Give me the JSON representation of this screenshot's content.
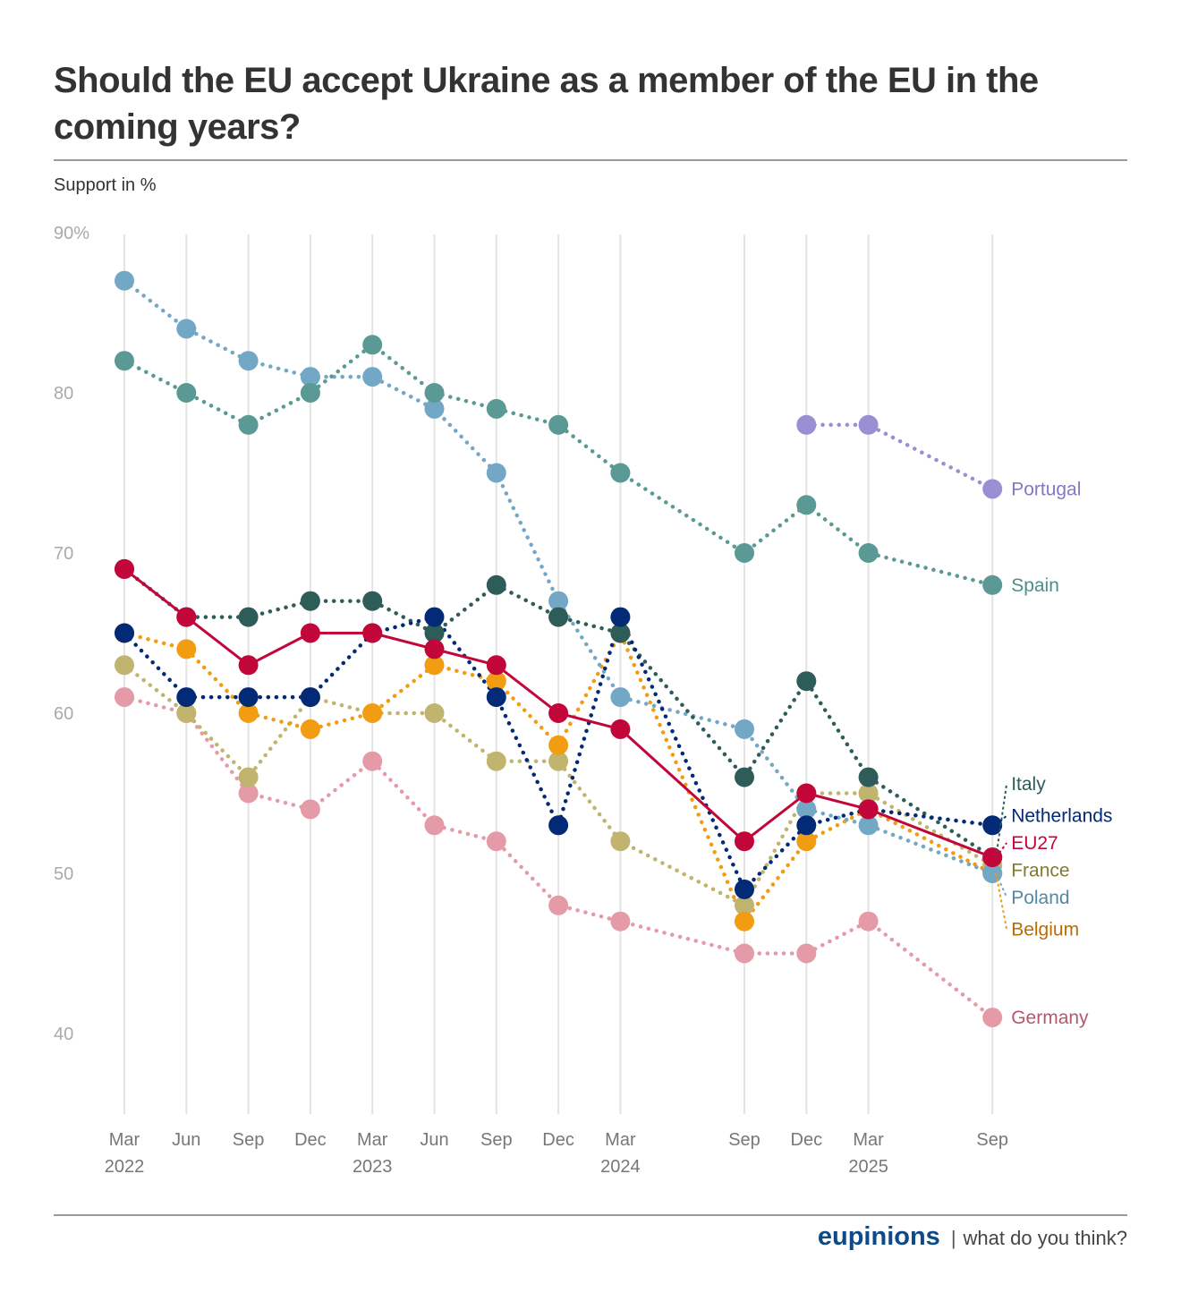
{
  "header": {
    "title": "Should the EU accept Ukraine as a member of the EU in the coming years?",
    "subtitle": "Support in %"
  },
  "footer": {
    "brand": "eupinions",
    "separator": "|",
    "tagline": "what do you think?"
  },
  "chart_data": {
    "type": "line",
    "title": "Should the EU accept Ukraine as a member of the EU in the coming years?",
    "ylabel": "Support in %",
    "xlabel": "",
    "ylim": [
      35,
      90
    ],
    "yticks": [
      {
        "value": 90,
        "label": "90%"
      },
      {
        "value": 80,
        "label": "80"
      },
      {
        "value": 70,
        "label": "70"
      },
      {
        "value": 60,
        "label": "60"
      },
      {
        "value": 50,
        "label": "50"
      },
      {
        "value": 40,
        "label": "40"
      }
    ],
    "grid": "vertical lines at survey dates",
    "legend": "direct labels at right end of lines",
    "x": [
      {
        "month": "Mar",
        "year": "2022",
        "t": 0
      },
      {
        "month": "Jun",
        "year": "",
        "t": 1
      },
      {
        "month": "Sep",
        "year": "",
        "t": 2
      },
      {
        "month": "Dec",
        "year": "",
        "t": 3
      },
      {
        "month": "Mar",
        "year": "2023",
        "t": 4
      },
      {
        "month": "Jun",
        "year": "",
        "t": 5
      },
      {
        "month": "Sep",
        "year": "",
        "t": 6
      },
      {
        "month": "Dec",
        "year": "",
        "t": 7
      },
      {
        "month": "Mar",
        "year": "2024",
        "t": 8
      },
      {
        "month": "Sep",
        "year": "",
        "t": 10
      },
      {
        "month": "Dec",
        "year": "",
        "t": 11
      },
      {
        "month": "Mar",
        "year": "2025",
        "t": 12
      },
      {
        "month": "Sep",
        "year": "",
        "t": 14
      }
    ],
    "series": [
      {
        "name": "Germany",
        "color": "#e59aa8",
        "label_color": "#b5586c",
        "style": "dotted",
        "values": [
          61,
          60,
          55,
          54,
          57,
          53,
          52,
          48,
          47,
          45,
          45,
          47,
          41
        ]
      },
      {
        "name": "France",
        "color": "#c0b46e",
        "label_color": "#857a32",
        "style": "dotted",
        "values": [
          63,
          60,
          56,
          61,
          60,
          60,
          57,
          57,
          52,
          48,
          55,
          55,
          50.5
        ]
      },
      {
        "name": "Belgium",
        "color": "#f29c12",
        "label_color": "#b86d08",
        "style": "dotted",
        "values": [
          65,
          64,
          60,
          59,
          60,
          63,
          62,
          58,
          65,
          47,
          52,
          54,
          50
        ]
      },
      {
        "name": "Poland",
        "color": "#72a8c6",
        "label_color": "#5488a6",
        "style": "dotted",
        "values": [
          87,
          84,
          82,
          81,
          81,
          79,
          75,
          67,
          61,
          59,
          54,
          53,
          50
        ]
      },
      {
        "name": "Spain",
        "color": "#5b9995",
        "label_color": "#4f8d89",
        "style": "dotted",
        "values": [
          82,
          80,
          78,
          80,
          83,
          80,
          79,
          78,
          75,
          70,
          73,
          70,
          68
        ]
      },
      {
        "name": "Portugal",
        "color": "#9b8fd4",
        "label_color": "#8478c4",
        "style": "dotted",
        "values": [
          null,
          null,
          null,
          null,
          null,
          null,
          null,
          null,
          null,
          null,
          78,
          78,
          74
        ]
      },
      {
        "name": "Italy",
        "color": "#2e5c58",
        "label_color": "#2e5c58",
        "style": "dotted",
        "values": [
          69,
          66,
          66,
          67,
          67,
          65,
          68,
          66,
          65,
          56,
          62,
          56,
          51
        ]
      },
      {
        "name": "Netherlands",
        "color": "#022a76",
        "label_color": "#022a76",
        "style": "dotted",
        "values": [
          65,
          61,
          61,
          61,
          65,
          66,
          61,
          53,
          66,
          49,
          53,
          54,
          53
        ]
      },
      {
        "name": "EU27",
        "color": "#c2063a",
        "label_color": "#c2063a",
        "style": "solid",
        "values": [
          69,
          66,
          63,
          65,
          65,
          64,
          63,
          60,
          59,
          52,
          55,
          54,
          51
        ]
      }
    ],
    "end_labels": [
      {
        "name": "Portugal",
        "value": 74
      },
      {
        "name": "Spain",
        "value": 68
      },
      {
        "name": "Italy",
        "value": 55.6
      },
      {
        "name": "Netherlands",
        "value": 53.6
      },
      {
        "name": "EU27",
        "value": 51.9
      },
      {
        "name": "France",
        "value": 50.2
      },
      {
        "name": "Poland",
        "value": 48.5
      },
      {
        "name": "Belgium",
        "value": 46.5
      },
      {
        "name": "Germany",
        "value": 41
      }
    ]
  }
}
